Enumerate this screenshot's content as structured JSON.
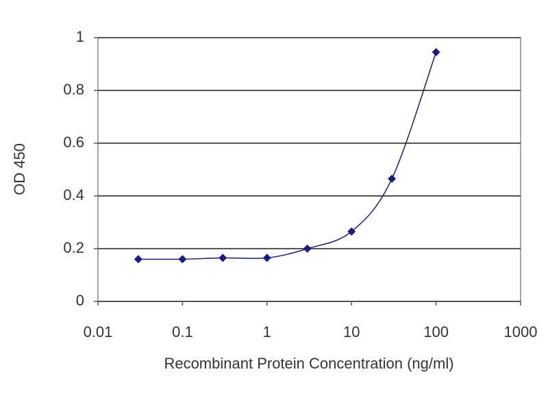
{
  "chart_data": {
    "type": "line",
    "y_label": "OD 450",
    "x_label": "Recombinant Protein Concentration (ng/ml)",
    "x": [
      0.03,
      0.1,
      0.3,
      1,
      3,
      10,
      30,
      100
    ],
    "values": [
      0.16,
      0.16,
      0.165,
      0.165,
      0.2,
      0.265,
      0.465,
      0.945
    ],
    "color": "#1a1a80",
    "xscale": "log",
    "xlim": [
      0.01,
      1000
    ],
    "xticks": [
      0.01,
      0.1,
      1,
      10,
      100,
      1000
    ],
    "ylim": [
      0,
      1
    ],
    "yticks": [
      0,
      0.2,
      0.4,
      0.6,
      0.8,
      1
    ],
    "grid": true
  }
}
